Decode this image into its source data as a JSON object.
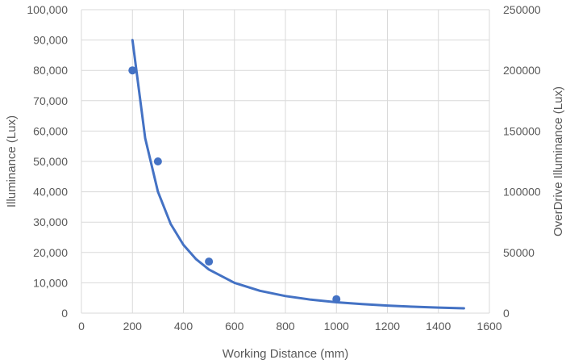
{
  "chart_data": {
    "type": "scatter",
    "title": "",
    "xlabel": "Working Distance (mm)",
    "ylabel": "Illuminance (Lux)",
    "y2label": "OverDrive Illuminance (Lux)",
    "xlim": [
      0,
      1600
    ],
    "ylim": [
      0,
      100000
    ],
    "y2lim": [
      0,
      250000
    ],
    "x_ticks": [
      0,
      200,
      400,
      600,
      800,
      1000,
      1200,
      1400,
      1600
    ],
    "x_tick_labels": [
      "0",
      "200",
      "400",
      "600",
      "800",
      "1000",
      "1200",
      "1400",
      "1600"
    ],
    "y_ticks": [
      0,
      10000,
      20000,
      30000,
      40000,
      50000,
      60000,
      70000,
      80000,
      90000,
      100000
    ],
    "y_tick_labels": [
      "0",
      "10,000",
      "20,000",
      "30,000",
      "40,000",
      "50,000",
      "60,000",
      "70,000",
      "80,000",
      "90,000",
      "100,000"
    ],
    "y2_ticks": [
      0,
      50000,
      100000,
      150000,
      200000,
      250000
    ],
    "y2_tick_labels": [
      "0",
      "50000",
      "100000",
      "150000",
      "200000",
      "250000"
    ],
    "grid": true,
    "legend": "none",
    "color": "#4472c4",
    "series": [
      {
        "kind": "points",
        "axis": "left",
        "x": [
          200,
          300,
          500,
          1000
        ],
        "y": [
          80000,
          50000,
          17000,
          4600
        ]
      },
      {
        "kind": "line",
        "axis": "right",
        "x": [
          200,
          250,
          300,
          350,
          400,
          450,
          500,
          600,
          700,
          800,
          900,
          1000,
          1100,
          1200,
          1300,
          1400,
          1500
        ],
        "y": [
          225000,
          144000,
          100000,
          73500,
          56250,
          44400,
          36000,
          25000,
          18400,
          14100,
          11100,
          9000,
          7440,
          6250,
          5330,
          4590,
          4000
        ]
      }
    ]
  }
}
